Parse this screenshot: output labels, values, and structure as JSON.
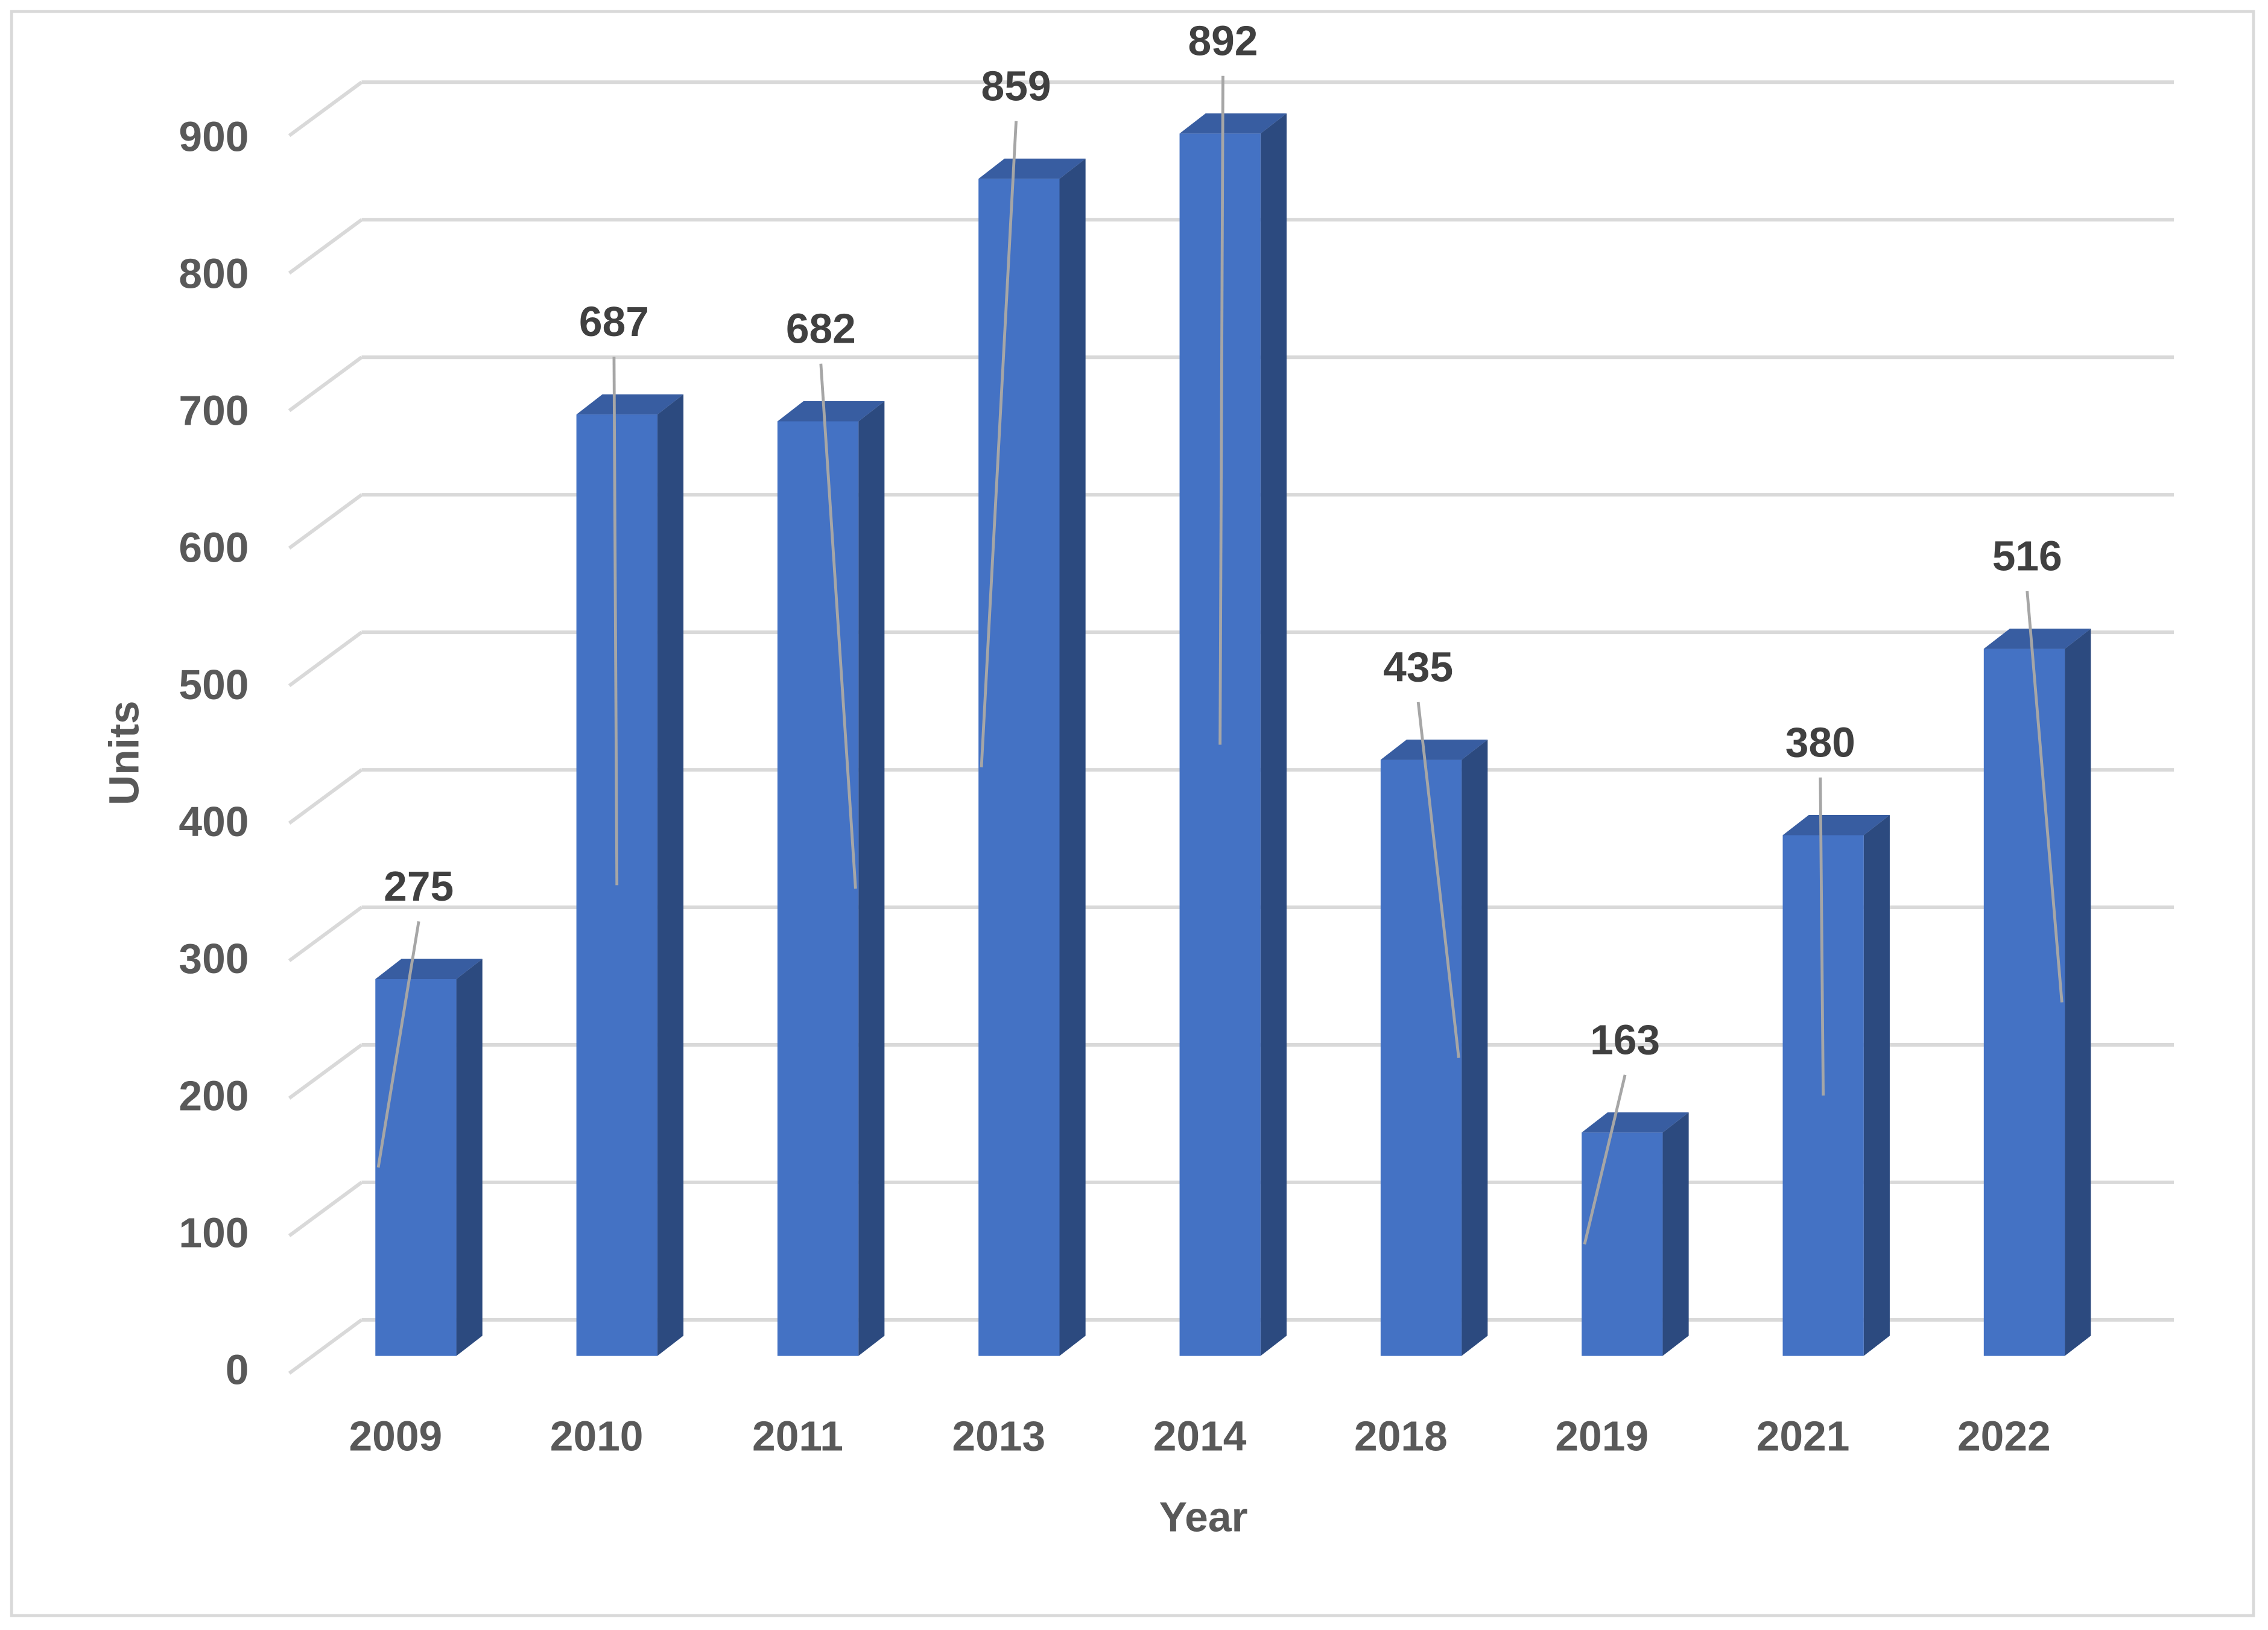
{
  "chart_data": {
    "type": "bar3d",
    "x_label": "Year",
    "y_label": "Units",
    "categories": [
      "2009",
      "2010",
      "2011",
      "2013",
      "2014",
      "2018",
      "2019",
      "2021",
      "2022"
    ],
    "values": [
      275,
      687,
      682,
      859,
      892,
      435,
      163,
      380,
      516
    ],
    "color": "#4472c4",
    "ylim": [
      0,
      900
    ],
    "yticks": [
      0,
      100,
      200,
      300,
      400,
      500,
      600,
      700,
      800,
      900
    ],
    "grid": true
  }
}
